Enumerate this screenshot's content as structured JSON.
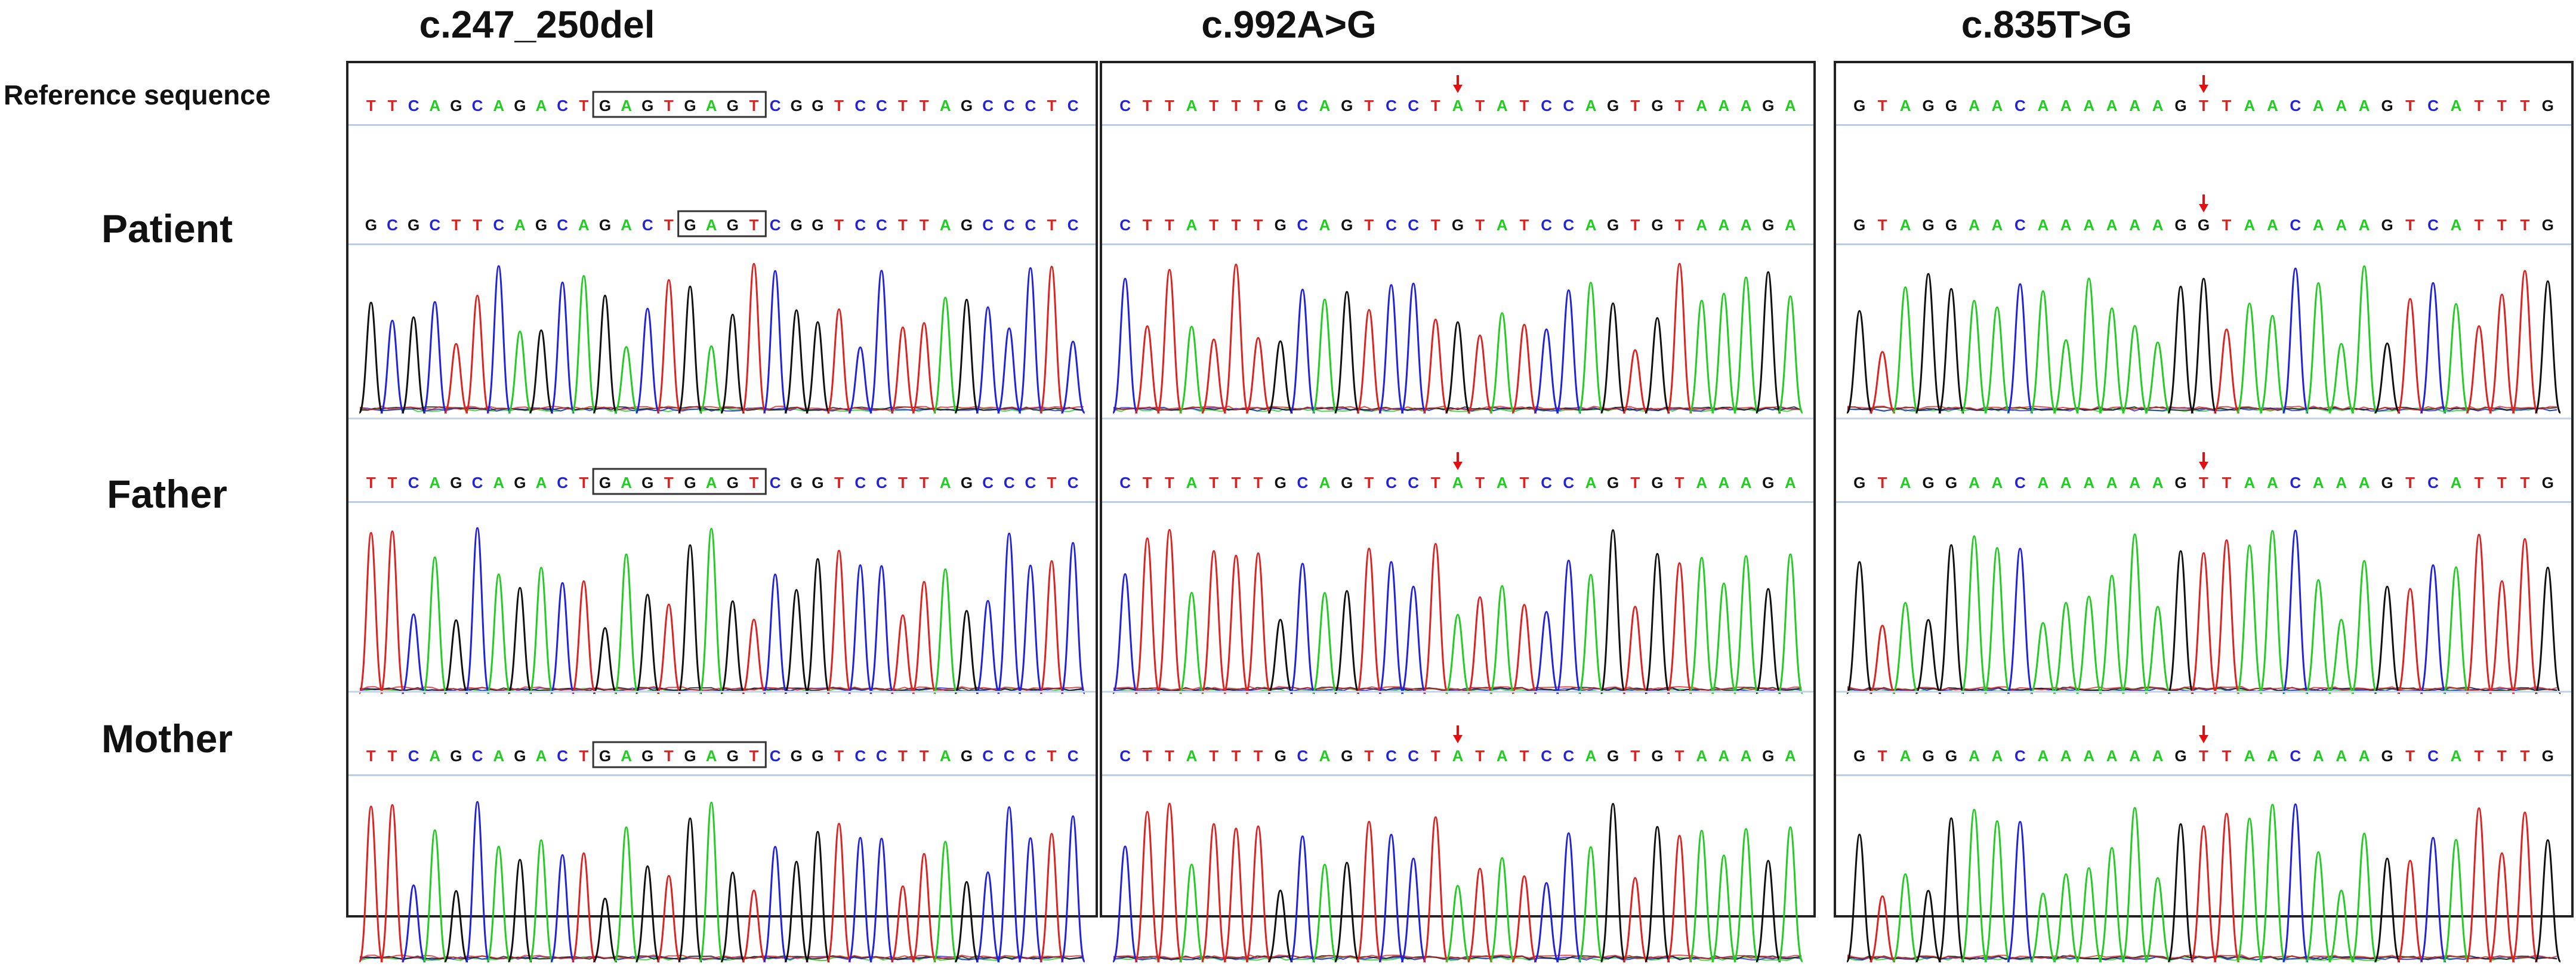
{
  "ref_label": "Reference sequence",
  "row_labels": {
    "patient": "Patient",
    "father": "Father",
    "mother": "Mother"
  },
  "colors": {
    "A": "#22cc22",
    "C": "#2222dd",
    "G": "#111111",
    "T": "#dd2222",
    "mark": "#e01010",
    "box": "#333333"
  },
  "panels": [
    {
      "title": "c.247_250del",
      "reference": {
        "seq": "TTCAGCAGACTGAGTGAGTCGGTCCTTAGCCCTC",
        "box": [
          11,
          18
        ],
        "arrow": null
      },
      "rows": [
        {
          "seq": "GCGCTTCAGCAGACTGAGTCGGTCCTTAGCCCTC",
          "box": [
            15,
            18
          ],
          "arrow": null
        },
        {
          "seq": "TTCAGCAGACTGAGTGAGTCGGTCCTTAGCCCTC",
          "box": [
            11,
            18
          ],
          "arrow": null
        },
        {
          "seq": "TTCAGCAGACTGAGTGAGTCGGTCCTTAGCCCTC",
          "box": [
            11,
            18
          ],
          "arrow": null
        }
      ]
    },
    {
      "title": "c.992A>G",
      "reference": {
        "seq": "CTTATTTGCAGTCCTATATCCAGTGTAAAGA",
        "box": null,
        "arrow": 15
      },
      "rows": [
        {
          "seq": "CTTATTTGCAGTCCTGTATCCAGTGTAAAGA",
          "box": null,
          "arrow": null
        },
        {
          "seq": "CTTATTTGCAGTCCTATATCCAGTGTAAAGA",
          "box": null,
          "arrow": 15
        },
        {
          "seq": "CTTATTTGCAGTCCTATATCCAGTGTAAAGA",
          "box": null,
          "arrow": 15
        }
      ]
    },
    {
      "title": "c.835T>G",
      "reference": {
        "seq": "GTAGGAACAAAAAAGTTAACAAAGTCATTTG",
        "box": null,
        "arrow": 15
      },
      "rows": [
        {
          "seq": "GTAGGAACAAAAAAGGTAACAAAGTCATTTG",
          "box": null,
          "arrow": 15
        },
        {
          "seq": "GTAGGAACAAAAAAGTTAACAAAGTCATTTG",
          "box": null,
          "arrow": 15
        },
        {
          "seq": "GTAGGAACAAAAAAGTTAACAAAGTCATTTG",
          "box": null,
          "arrow": 15
        }
      ]
    }
  ]
}
